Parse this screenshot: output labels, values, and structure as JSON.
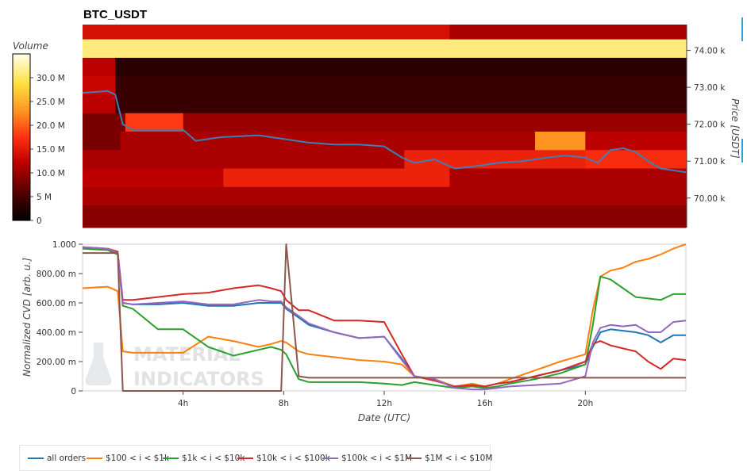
{
  "title": "BTC_USDT",
  "colorbar": {
    "title": "Volume",
    "ticks": [
      "30.0 M",
      "25.0 M",
      "20.0 M",
      "15.0 M",
      "10.0 M",
      "5 M",
      "0"
    ]
  },
  "price_axis": {
    "label": "Price [USDT]",
    "ticks": [
      "74.00 k",
      "73.00 k",
      "72.00 k",
      "71.00 k",
      "70.00 k"
    ]
  },
  "cvd_axis": {
    "label": "Normalized CVD [arb. u.]",
    "ticks": [
      "1.000",
      "800.00 m",
      "600.00 m",
      "400.00 m",
      "200.00 m",
      "0"
    ]
  },
  "time_axis": {
    "label": "Date (UTC)",
    "ticks": [
      "4h",
      "8h",
      "12h",
      "16h",
      "20h"
    ]
  },
  "watermark": [
    "MATERIAL",
    "INDICATORS"
  ],
  "legend": [
    {
      "label": "all orders",
      "color": "#1f77b4"
    },
    {
      "label": "$100 < i < $1k",
      "color": "#ff7f0e"
    },
    {
      "label": "$1k < i < $10k",
      "color": "#2ca02c"
    },
    {
      "label": "$10k < i < $100k",
      "color": "#d62728"
    },
    {
      "label": "$100k < i < $1M",
      "color": "#9467bd"
    },
    {
      "label": "$1M < i < $10M",
      "color": "#8c564b"
    }
  ],
  "chart_data": [
    {
      "type": "heatmap",
      "title": "BTC_USDT",
      "xlabel": "",
      "ylabel": "Price [USDT]",
      "x_range_hours": [
        0,
        24
      ],
      "y_range": [
        69200,
        74700
      ],
      "bands": [
        {
          "price_range": [
            74300,
            74700
          ],
          "segments": [
            {
              "t": [
                0,
                14.6
              ],
              "volume": 14
            },
            {
              "t": [
                14.6,
                24
              ],
              "volume": 11
            }
          ]
        },
        {
          "price_range": [
            73800,
            74300
          ],
          "segments": [
            {
              "t": [
                0,
                24
              ],
              "volume": 31
            }
          ]
        },
        {
          "price_range": [
            73300,
            73800
          ],
          "segments": [
            {
              "t": [
                0,
                1.3
              ],
              "volume": 12
            },
            {
              "t": [
                1.3,
                24
              ],
              "volume": 3
            }
          ]
        },
        {
          "price_range": [
            72800,
            73300
          ],
          "segments": [
            {
              "t": [
                0,
                1.3
              ],
              "volume": 13
            },
            {
              "t": [
                1.3,
                24
              ],
              "volume": 4
            }
          ]
        },
        {
          "price_range": [
            72300,
            72800
          ],
          "segments": [
            {
              "t": [
                0,
                1.3
              ],
              "volume": 12
            },
            {
              "t": [
                1.3,
                24
              ],
              "volume": 4
            }
          ]
        },
        {
          "price_range": [
            71800,
            72300
          ],
          "segments": [
            {
              "t": [
                0,
                1.7
              ],
              "volume": 8
            },
            {
              "t": [
                1.7,
                4.0
              ],
              "volume": 18
            },
            {
              "t": [
                4.0,
                24
              ],
              "volume": 10
            }
          ]
        },
        {
          "price_range": [
            71300,
            71800
          ],
          "segments": [
            {
              "t": [
                0,
                1.5
              ],
              "volume": 8
            },
            {
              "t": [
                1.5,
                18.0
              ],
              "volume": 11
            },
            {
              "t": [
                18.0,
                20.0
              ],
              "volume": 23
            },
            {
              "t": [
                20.0,
                24
              ],
              "volume": 12
            }
          ]
        },
        {
          "price_range": [
            70800,
            71300
          ],
          "segments": [
            {
              "t": [
                0,
                12.8
              ],
              "volume": 11
            },
            {
              "t": [
                12.8,
                20.0
              ],
              "volume": 16
            },
            {
              "t": [
                20.0,
                24
              ],
              "volume": 17
            }
          ]
        },
        {
          "price_range": [
            70300,
            70800
          ],
          "segments": [
            {
              "t": [
                0,
                5.6
              ],
              "volume": 12
            },
            {
              "t": [
                5.6,
                14.6
              ],
              "volume": 16
            },
            {
              "t": [
                14.6,
                24
              ],
              "volume": 11
            }
          ]
        },
        {
          "price_range": [
            69800,
            70300
          ],
          "segments": [
            {
              "t": [
                0,
                24
              ],
              "volume": 11
            }
          ]
        },
        {
          "price_range": [
            69200,
            69800
          ],
          "segments": [
            {
              "t": [
                0,
                24
              ],
              "volume": 9
            }
          ]
        }
      ],
      "price_line": {
        "name": "Price",
        "t": [
          0,
          1.0,
          1.3,
          1.6,
          2.0,
          3.0,
          4.0,
          4.5,
          5.5,
          7.0,
          8.0,
          9.0,
          10.0,
          11.0,
          12.0,
          12.7,
          13.2,
          14.0,
          14.8,
          15.5,
          16.5,
          17.5,
          18.5,
          19.2,
          20.0,
          20.5,
          21.0,
          21.5,
          22.0,
          22.5,
          23.0,
          23.5,
          24.0
        ],
        "price": [
          72850,
          72900,
          72800,
          72000,
          71850,
          71850,
          71850,
          71550,
          71650,
          71700,
          71600,
          71500,
          71450,
          71450,
          71400,
          71100,
          70950,
          71050,
          70800,
          70850,
          70950,
          71000,
          71100,
          71150,
          71100,
          70950,
          71300,
          71350,
          71250,
          71000,
          70800,
          70750,
          70700
        ]
      }
    },
    {
      "type": "line",
      "title": "",
      "xlabel": "Date (UTC)",
      "ylabel": "Normalized CVD [arb. u.]",
      "x_range_hours": [
        0,
        24
      ],
      "ylim": [
        0,
        1.0
      ],
      "x": [
        0,
        1.0,
        1.4,
        1.6,
        2.0,
        3.0,
        4.0,
        5.0,
        6.0,
        7.0,
        7.5,
        7.9,
        8.1,
        8.6,
        9.0,
        10.0,
        11.0,
        12.0,
        12.7,
        13.2,
        14.0,
        14.8,
        15.5,
        16.0,
        16.5,
        17.0,
        18.0,
        19.0,
        20.0,
        20.3,
        20.6,
        21.0,
        21.5,
        22.0,
        22.5,
        23.0,
        23.5,
        24.0
      ],
      "series": [
        {
          "name": "all orders",
          "values": [
            0.98,
            0.97,
            0.94,
            0.6,
            0.59,
            0.59,
            0.6,
            0.58,
            0.58,
            0.6,
            0.6,
            0.6,
            0.56,
            0.5,
            0.45,
            0.4,
            0.36,
            0.37,
            0.22,
            0.1,
            0.08,
            0.03,
            0.04,
            0.03,
            0.05,
            0.06,
            0.1,
            0.14,
            0.18,
            0.3,
            0.4,
            0.42,
            0.41,
            0.4,
            0.38,
            0.33,
            0.38,
            0.38
          ]
        },
        {
          "name": "$100 < i < $1k",
          "values": [
            0.7,
            0.71,
            0.68,
            0.27,
            0.26,
            0.26,
            0.26,
            0.37,
            0.34,
            0.3,
            0.32,
            0.34,
            0.33,
            0.27,
            0.25,
            0.23,
            0.21,
            0.2,
            0.18,
            0.1,
            0.08,
            0.03,
            0.05,
            0.03,
            0.05,
            0.08,
            0.14,
            0.2,
            0.25,
            0.55,
            0.78,
            0.82,
            0.84,
            0.88,
            0.9,
            0.93,
            0.97,
            1.0
          ]
        },
        {
          "name": "$1k < i < $10k",
          "values": [
            0.97,
            0.96,
            0.93,
            0.58,
            0.56,
            0.42,
            0.42,
            0.3,
            0.24,
            0.28,
            0.3,
            0.28,
            0.25,
            0.08,
            0.06,
            0.06,
            0.06,
            0.05,
            0.04,
            0.06,
            0.04,
            0.02,
            0.03,
            0.02,
            0.03,
            0.05,
            0.08,
            0.12,
            0.18,
            0.45,
            0.78,
            0.76,
            0.7,
            0.64,
            0.63,
            0.62,
            0.66,
            0.66
          ]
        },
        {
          "name": "$10k < i < $100k",
          "values": [
            0.98,
            0.97,
            0.95,
            0.62,
            0.62,
            0.64,
            0.66,
            0.67,
            0.7,
            0.72,
            0.7,
            0.68,
            0.62,
            0.55,
            0.55,
            0.48,
            0.48,
            0.47,
            0.25,
            0.1,
            0.07,
            0.03,
            0.04,
            0.03,
            0.05,
            0.06,
            0.1,
            0.14,
            0.2,
            0.32,
            0.34,
            0.31,
            0.29,
            0.27,
            0.2,
            0.15,
            0.22,
            0.21
          ]
        },
        {
          "name": "$100k < i < $1M",
          "values": [
            0.98,
            0.97,
            0.94,
            0.6,
            0.59,
            0.6,
            0.61,
            0.59,
            0.59,
            0.62,
            0.61,
            0.61,
            0.57,
            0.51,
            0.46,
            0.4,
            0.36,
            0.37,
            0.21,
            0.1,
            0.08,
            0.02,
            0.01,
            0.01,
            0.02,
            0.03,
            0.04,
            0.05,
            0.1,
            0.33,
            0.43,
            0.45,
            0.44,
            0.45,
            0.4,
            0.4,
            0.47,
            0.48
          ]
        },
        {
          "name": "$1M < i < $10M",
          "values": [
            0.94,
            0.94,
            0.94,
            0.0,
            0.0,
            0.0,
            0.0,
            0.0,
            0.0,
            0.0,
            0.0,
            0.0,
            1.0,
            0.1,
            0.09,
            0.09,
            0.09,
            0.09,
            0.09,
            0.09,
            0.09,
            0.09,
            0.09,
            0.09,
            0.09,
            0.09,
            0.09,
            0.09,
            0.09,
            0.09,
            0.09,
            0.09,
            0.09,
            0.09,
            0.09,
            0.09,
            0.09,
            0.09
          ]
        }
      ]
    }
  ]
}
